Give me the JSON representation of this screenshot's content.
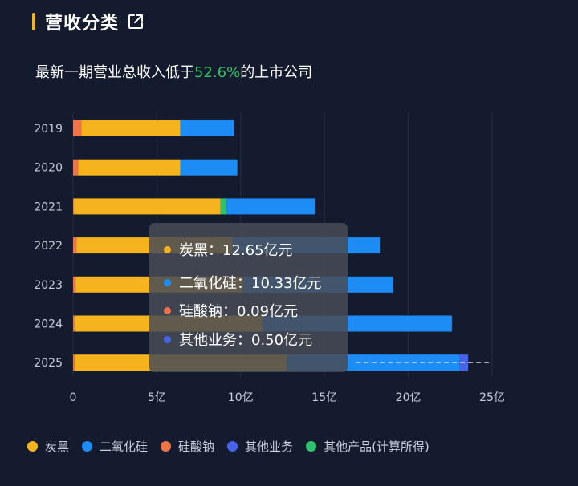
{
  "header": {
    "title": "营收分类"
  },
  "subtitle": {
    "prefix": "最新一期营业总收入低于",
    "highlight": "52.6%",
    "suffix": "的上市公司"
  },
  "colors": {
    "carbon_black": "#f5b41d",
    "silica": "#1e8cf5",
    "sodium_silicate": "#ee7448",
    "other_business": "#4763ec",
    "other_products": "#2fc26e",
    "highlight": "#2fc25b"
  },
  "legend": [
    {
      "label": "炭黑",
      "color": "#f5b41d"
    },
    {
      "label": "二氧化硅",
      "color": "#1e8cf5"
    },
    {
      "label": "硅酸钠",
      "color": "#ee7448"
    },
    {
      "label": "其他业务",
      "color": "#4763ec"
    },
    {
      "label": "其他产品(计算所得)",
      "color": "#2fc26e"
    }
  ],
  "tooltip": {
    "rows": [
      {
        "text": "炭黑：12.65亿元",
        "color": "#f5b41d"
      },
      {
        "text": "二氧化硅：10.33亿元",
        "color": "#1e8cf5"
      },
      {
        "text": "硅酸钠：0.09亿元",
        "color": "#ee7448"
      },
      {
        "text": "其他业务：0.50亿元",
        "color": "#4763ec"
      }
    ]
  },
  "chart_data": {
    "type": "bar",
    "orientation": "horizontal",
    "stacked": true,
    "categories": [
      "2019",
      "2020",
      "2021",
      "2022",
      "2023",
      "2024",
      "2025"
    ],
    "series": [
      {
        "name": "硅酸钠",
        "color": "#ee7448",
        "values": [
          0.5,
          0.3,
          0.05,
          0.2,
          0.15,
          0.1,
          0.09
        ]
      },
      {
        "name": "炭黑",
        "color": "#f5b41d",
        "values": [
          5.9,
          6.1,
          8.75,
          9.3,
          10.0,
          11.2,
          12.65
        ]
      },
      {
        "name": "其他产品(计算所得)",
        "color": "#2fc26e",
        "values": [
          0,
          0,
          0.35,
          0,
          0,
          0,
          0
        ]
      },
      {
        "name": "二氧化硅",
        "color": "#1e8cf5",
        "values": [
          3.2,
          3.4,
          5.3,
          8.8,
          8.95,
          11.3,
          10.33
        ]
      },
      {
        "name": "其他业务",
        "color": "#4763ec",
        "values": [
          0,
          0,
          0,
          0,
          0,
          0,
          0.5
        ]
      }
    ],
    "projection": {
      "category": "2025",
      "value": 25
    },
    "xlim": [
      0,
      25
    ],
    "xticks": [
      0,
      5,
      10,
      15,
      20,
      25
    ],
    "xtick_labels": [
      "0",
      "5亿",
      "10亿",
      "15亿",
      "20亿",
      "25亿"
    ],
    "grid": true,
    "legend_position": "bottom"
  }
}
